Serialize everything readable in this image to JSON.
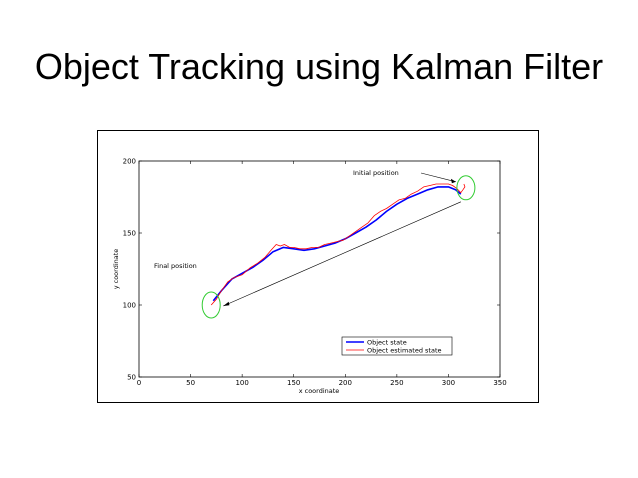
{
  "slide": {
    "title": "Object Tracking using Kalman Filter"
  },
  "chart_data": {
    "type": "line",
    "xlabel": "x coordinate",
    "ylabel": "y coordinate",
    "xlim": [
      0,
      350
    ],
    "ylim": [
      50,
      200
    ],
    "x_ticks": [
      0,
      50,
      100,
      150,
      200,
      250,
      300,
      350
    ],
    "y_ticks": [
      50,
      100,
      150,
      200
    ],
    "grid": false,
    "legend_position": "bottom-right",
    "series": [
      {
        "name": "Object state",
        "color": "#0000ff",
        "points": [
          [
            72,
            103
          ],
          [
            80,
            110
          ],
          [
            90,
            118
          ],
          [
            100,
            122
          ],
          [
            110,
            126
          ],
          [
            120,
            131
          ],
          [
            130,
            137
          ],
          [
            140,
            140
          ],
          [
            150,
            139
          ],
          [
            160,
            138
          ],
          [
            170,
            139
          ],
          [
            180,
            141
          ],
          [
            190,
            143
          ],
          [
            200,
            146
          ],
          [
            210,
            150
          ],
          [
            220,
            154
          ],
          [
            230,
            159
          ],
          [
            240,
            165
          ],
          [
            250,
            170
          ],
          [
            260,
            174
          ],
          [
            270,
            177
          ],
          [
            280,
            180
          ],
          [
            290,
            182
          ],
          [
            300,
            182
          ],
          [
            307,
            180
          ],
          [
            312,
            177
          ]
        ]
      },
      {
        "name": "Object estimated state",
        "color": "#ff0000",
        "points": [
          [
            70,
            100
          ],
          [
            75,
            104
          ],
          [
            80,
            110
          ],
          [
            86,
            116
          ],
          [
            92,
            119
          ],
          [
            100,
            121
          ],
          [
            108,
            126
          ],
          [
            115,
            129
          ],
          [
            122,
            133
          ],
          [
            128,
            138
          ],
          [
            133,
            142
          ],
          [
            137,
            141
          ],
          [
            141,
            142
          ],
          [
            146,
            140
          ],
          [
            150,
            140
          ],
          [
            156,
            139
          ],
          [
            162,
            139
          ],
          [
            168,
            140
          ],
          [
            174,
            140
          ],
          [
            180,
            142
          ],
          [
            186,
            143
          ],
          [
            192,
            144
          ],
          [
            198,
            145
          ],
          [
            204,
            148
          ],
          [
            210,
            151
          ],
          [
            216,
            154
          ],
          [
            222,
            157
          ],
          [
            228,
            162
          ],
          [
            234,
            165
          ],
          [
            240,
            167
          ],
          [
            246,
            170
          ],
          [
            252,
            173
          ],
          [
            258,
            174
          ],
          [
            264,
            177
          ],
          [
            270,
            179
          ],
          [
            276,
            182
          ],
          [
            282,
            183
          ],
          [
            288,
            184
          ],
          [
            294,
            184
          ],
          [
            300,
            184
          ],
          [
            304,
            183
          ],
          [
            308,
            181
          ],
          [
            312,
            178
          ],
          [
            314,
            180
          ],
          [
            316,
            182
          ],
          [
            315,
            184
          ]
        ]
      }
    ],
    "annotations": [
      {
        "text": "Initial position",
        "point": [
          315,
          180
        ]
      },
      {
        "text": "Final position",
        "point": [
          70,
          100
        ]
      }
    ]
  }
}
